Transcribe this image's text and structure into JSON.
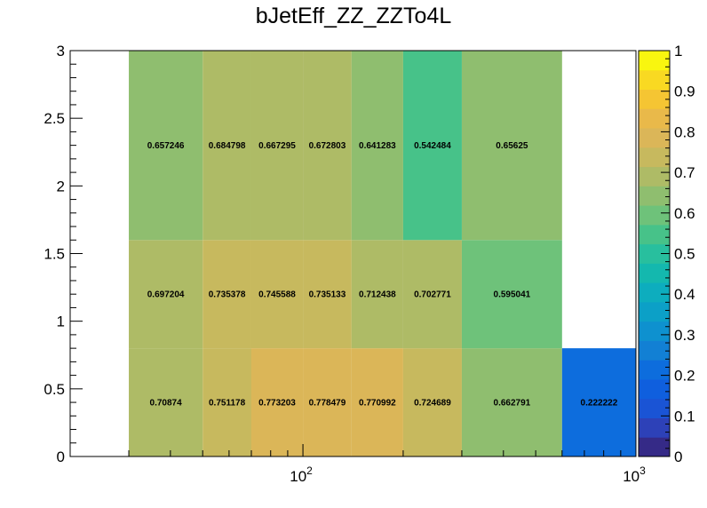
{
  "chart_data": {
    "type": "heatmap",
    "title": "bJetEff_ZZ_ZZTo4L",
    "xlabel": "",
    "ylabel": "",
    "x_scale": "log",
    "xlim": [
      20,
      1000
    ],
    "ylim": [
      0,
      3
    ],
    "zlim": [
      0,
      1
    ],
    "x_edges": [
      30,
      50,
      70,
      100,
      140,
      200,
      300,
      600,
      1000
    ],
    "y_edges": [
      0,
      0.8,
      1.6,
      3
    ],
    "x_ticks": [
      {
        "value": 100,
        "base": "10",
        "exp": "2"
      },
      {
        "value": 1000,
        "base": "10",
        "exp": "3"
      }
    ],
    "y_ticks": [
      "0",
      "0.5",
      "1",
      "1.5",
      "2",
      "2.5",
      "3"
    ],
    "palette_ticks": [
      "0",
      "0.1",
      "0.2",
      "0.3",
      "0.4",
      "0.5",
      "0.6",
      "0.7",
      "0.8",
      "0.9",
      "1"
    ],
    "palette": [
      "#352a87",
      "#2d41b8",
      "#1a54d5",
      "#0f5fde",
      "#0d6ddd",
      "#1280d4",
      "#0e91cf",
      "#0ca0c7",
      "#0dadbe",
      "#14b8ae",
      "#28bf9e",
      "#47c289",
      "#6ec27a",
      "#8fbe6f",
      "#aebb66",
      "#c7b95e",
      "#dbb658",
      "#e9b94a",
      "#f5c533",
      "#f9d922",
      "#f9f60f"
    ],
    "cells": [
      {
        "xbin": 0,
        "ybin": 0,
        "value": 0.70874,
        "label": "0.70874"
      },
      {
        "xbin": 1,
        "ybin": 0,
        "value": 0.751178,
        "label": "0.751178"
      },
      {
        "xbin": 2,
        "ybin": 0,
        "value": 0.773203,
        "label": "0.773203"
      },
      {
        "xbin": 3,
        "ybin": 0,
        "value": 0.778479,
        "label": "0.778479"
      },
      {
        "xbin": 4,
        "ybin": 0,
        "value": 0.770992,
        "label": "0.770992"
      },
      {
        "xbin": 5,
        "ybin": 0,
        "value": 0.724689,
        "label": "0.724689"
      },
      {
        "xbin": 6,
        "ybin": 0,
        "value": 0.662791,
        "label": "0.662791"
      },
      {
        "xbin": 7,
        "ybin": 0,
        "value": 0.222222,
        "label": "0.222222"
      },
      {
        "xbin": 0,
        "ybin": 1,
        "value": 0.697204,
        "label": "0.697204"
      },
      {
        "xbin": 1,
        "ybin": 1,
        "value": 0.735378,
        "label": "0.735378"
      },
      {
        "xbin": 2,
        "ybin": 1,
        "value": 0.745588,
        "label": "0.745588"
      },
      {
        "xbin": 3,
        "ybin": 1,
        "value": 0.735133,
        "label": "0.735133"
      },
      {
        "xbin": 4,
        "ybin": 1,
        "value": 0.712438,
        "label": "0.712438"
      },
      {
        "xbin": 5,
        "ybin": 1,
        "value": 0.702771,
        "label": "0.702771"
      },
      {
        "xbin": 6,
        "ybin": 1,
        "value": 0.595041,
        "label": "0.595041"
      },
      {
        "xbin": 0,
        "ybin": 2,
        "value": 0.657246,
        "label": "0.657246"
      },
      {
        "xbin": 1,
        "ybin": 2,
        "value": 0.684798,
        "label": "0.684798"
      },
      {
        "xbin": 2,
        "ybin": 2,
        "value": 0.667295,
        "label": "0.667295"
      },
      {
        "xbin": 3,
        "ybin": 2,
        "value": 0.672803,
        "label": "0.672803"
      },
      {
        "xbin": 4,
        "ybin": 2,
        "value": 0.641283,
        "label": "0.641283"
      },
      {
        "xbin": 5,
        "ybin": 2,
        "value": 0.542484,
        "label": "0.542484"
      },
      {
        "xbin": 6,
        "ybin": 2,
        "value": 0.65625,
        "label": "0.65625"
      }
    ]
  }
}
